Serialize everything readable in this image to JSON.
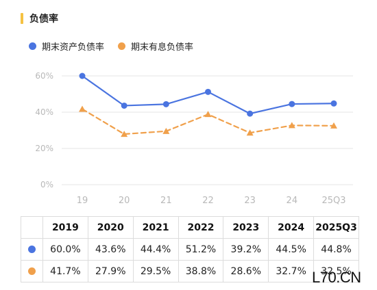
{
  "title": "负债率",
  "colors": {
    "title_bar": "#f5c242",
    "series_1": "#4a74e0",
    "series_2": "#f0a04b",
    "grid": "#e6e6e6",
    "tick": "#b8b8b8"
  },
  "watermark": "L70.CN",
  "chart_data": {
    "type": "line",
    "categories": [
      "19",
      "20",
      "21",
      "22",
      "23",
      "24",
      "25Q3"
    ],
    "series": [
      {
        "name": "期末资产负债率",
        "values": [
          60.0,
          43.6,
          44.4,
          51.2,
          39.2,
          44.5,
          44.8
        ],
        "style": "solid",
        "marker": "circle"
      },
      {
        "name": "期末有息负债率",
        "values": [
          41.7,
          27.9,
          29.5,
          38.8,
          28.6,
          32.7,
          32.5
        ],
        "style": "dashed",
        "marker": "triangle"
      }
    ],
    "y_ticks": [
      "60%",
      "40%",
      "20%",
      "0%"
    ],
    "ylim": [
      0,
      60
    ],
    "grid": true,
    "legend": "top-left"
  },
  "table": {
    "headers": [
      "2019",
      "2020",
      "2021",
      "2022",
      "2023",
      "2024",
      "2025Q3"
    ],
    "rows": [
      {
        "cells": [
          "60.0%",
          "43.6%",
          "44.4%",
          "51.2%",
          "39.2%",
          "44.5%",
          "44.8%"
        ]
      },
      {
        "cells": [
          "41.7%",
          "27.9%",
          "29.5%",
          "38.8%",
          "28.6%",
          "32.7%",
          "32.5%"
        ]
      }
    ]
  }
}
